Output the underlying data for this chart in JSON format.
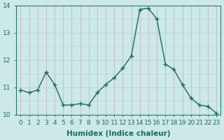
{
  "x": [
    0,
    1,
    2,
    3,
    4,
    5,
    6,
    7,
    8,
    9,
    10,
    11,
    12,
    13,
    14,
    15,
    16,
    17,
    18,
    19,
    20,
    21,
    22,
    23
  ],
  "y": [
    10.9,
    10.8,
    10.9,
    11.55,
    11.1,
    10.35,
    10.35,
    10.4,
    10.35,
    10.8,
    11.1,
    11.35,
    11.7,
    12.15,
    13.85,
    13.9,
    13.5,
    11.85,
    11.65,
    11.1,
    10.6,
    10.35,
    10.3,
    10.05
  ],
  "line_color": "#1a6b5a",
  "marker": "+",
  "marker_size": 4,
  "bg_color": "#cce8e8",
  "grid_color_h": "#b8d4d4",
  "grid_color_v": "#c8b8b8",
  "xlabel": "Humidex (Indice chaleur)",
  "ylabel": "",
  "ylim": [
    10.0,
    14.0
  ],
  "xlim": [
    -0.5,
    23.5
  ],
  "yticks": [
    10,
    11,
    12,
    13,
    14
  ],
  "xticks": [
    0,
    1,
    2,
    3,
    4,
    5,
    6,
    7,
    8,
    9,
    10,
    11,
    12,
    13,
    14,
    15,
    16,
    17,
    18,
    19,
    20,
    21,
    22,
    23
  ],
  "tick_color": "#1a6b5a",
  "label_color": "#1a6b5a",
  "xlabel_fontsize": 7.5,
  "tick_fontsize": 6.5
}
